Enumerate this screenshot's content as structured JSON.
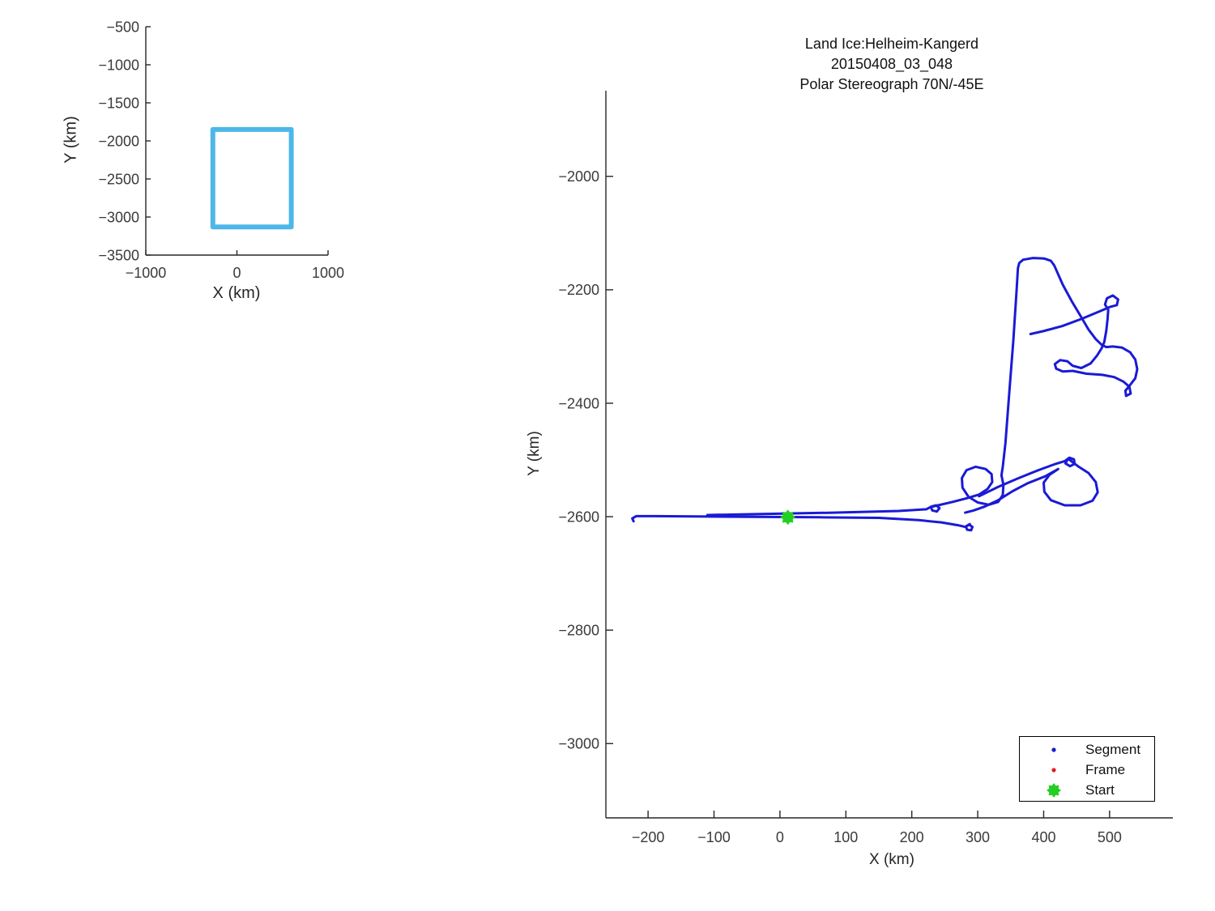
{
  "chart_data": [
    {
      "id": "overview-inset",
      "type": "line",
      "title": "",
      "xlabel": "X (km)",
      "ylabel": "Y (km)",
      "xlim": [
        -1000,
        1000
      ],
      "ylim": [
        -3500,
        -500
      ],
      "x_ticks": [
        -1000,
        0,
        1000
      ],
      "y_ticks": [
        -500,
        -1000,
        -1500,
        -2000,
        -2500,
        -3000,
        -3500
      ],
      "grid": false,
      "series": [
        {
          "name": "coverage-outline",
          "color": "#4db7e8",
          "linewidth": 6,
          "x": [
            -264,
            596,
            596,
            -264,
            -264
          ],
          "y": [
            -1850,
            -1850,
            -3130,
            -3130,
            -1850
          ]
        }
      ]
    },
    {
      "id": "flight-track",
      "type": "line",
      "title": [
        "Land Ice:Helheim-Kangerd",
        "20150408_03_048",
        "Polar Stereograph 70N/-45E"
      ],
      "xlabel": "X (km)",
      "ylabel": "Y (km)",
      "xlim": [
        -264,
        596
      ],
      "ylim": [
        -3131,
        -1849
      ],
      "x_ticks": [
        -200,
        -100,
        0,
        100,
        200,
        300,
        400,
        500
      ],
      "y_ticks": [
        -2000,
        -2200,
        -2400,
        -2600,
        -2800,
        -3000
      ],
      "grid": false,
      "legend_position": "lower right",
      "legend": [
        {
          "label": "Segment",
          "marker": "dot",
          "color": "#1a1ad6"
        },
        {
          "label": "Frame",
          "marker": "dot",
          "color": "#e02020"
        },
        {
          "label": "Start",
          "marker": "star8",
          "color": "#22cf22"
        }
      ],
      "track_color": "#1a1ad6",
      "start_point": {
        "x": 12,
        "y": -2601
      },
      "track_segments": [
        [
          [
            -222,
            -2608
          ],
          [
            -224,
            -2603
          ],
          [
            -218,
            -2599
          ],
          [
            -190,
            -2599
          ],
          [
            60,
            -2601
          ],
          [
            150,
            -2602
          ],
          [
            210,
            -2606
          ],
          [
            245,
            -2610
          ],
          [
            270,
            -2615
          ],
          [
            281,
            -2618
          ],
          [
            287,
            -2614
          ],
          [
            292,
            -2618
          ],
          [
            290,
            -2624
          ],
          [
            284,
            -2623
          ],
          [
            282,
            -2617
          ],
          [
            288,
            -2613
          ]
        ],
        [
          [
            -110,
            -2597
          ],
          [
            80,
            -2593
          ],
          [
            180,
            -2590
          ],
          [
            222,
            -2587
          ],
          [
            230,
            -2582
          ],
          [
            237,
            -2580
          ],
          [
            242,
            -2585
          ],
          [
            238,
            -2591
          ],
          [
            231,
            -2589
          ],
          [
            229,
            -2583
          ],
          [
            240,
            -2580
          ],
          [
            262,
            -2574
          ],
          [
            285,
            -2567
          ],
          [
            302,
            -2561
          ],
          [
            315,
            -2551
          ],
          [
            322,
            -2539
          ],
          [
            321,
            -2525
          ],
          [
            312,
            -2516
          ],
          [
            297,
            -2512
          ],
          [
            283,
            -2518
          ],
          [
            276,
            -2532
          ],
          [
            277,
            -2549
          ],
          [
            286,
            -2565
          ],
          [
            300,
            -2575
          ],
          [
            317,
            -2579
          ],
          [
            331,
            -2574
          ],
          [
            338,
            -2562
          ],
          [
            339,
            -2544
          ],
          [
            336,
            -2527
          ],
          [
            338,
            -2512
          ],
          [
            342,
            -2470
          ],
          [
            348,
            -2380
          ],
          [
            354,
            -2290
          ],
          [
            359,
            -2200
          ],
          [
            361,
            -2162
          ],
          [
            363,
            -2153
          ],
          [
            369,
            -2147
          ],
          [
            384,
            -2144
          ],
          [
            401,
            -2145
          ],
          [
            411,
            -2149
          ],
          [
            416,
            -2157
          ],
          [
            429,
            -2191
          ],
          [
            443,
            -2221
          ],
          [
            456,
            -2246
          ],
          [
            468,
            -2270
          ],
          [
            479,
            -2287
          ],
          [
            488,
            -2297
          ],
          [
            495,
            -2301
          ],
          [
            505,
            -2300
          ],
          [
            519,
            -2302
          ],
          [
            531,
            -2310
          ],
          [
            539,
            -2323
          ],
          [
            542,
            -2340
          ],
          [
            539,
            -2356
          ],
          [
            531,
            -2368
          ],
          [
            524,
            -2378
          ],
          [
            525,
            -2387
          ],
          [
            532,
            -2383
          ],
          [
            530,
            -2371
          ],
          [
            521,
            -2362
          ],
          [
            507,
            -2354
          ],
          [
            489,
            -2350
          ],
          [
            465,
            -2348
          ],
          [
            444,
            -2343
          ],
          [
            429,
            -2344
          ],
          [
            419,
            -2339
          ],
          [
            417,
            -2331
          ],
          [
            425,
            -2324
          ],
          [
            436,
            -2326
          ],
          [
            444,
            -2334
          ],
          [
            457,
            -2338
          ],
          [
            471,
            -2330
          ],
          [
            481,
            -2316
          ],
          [
            488,
            -2303
          ],
          [
            492,
            -2292
          ],
          [
            495,
            -2272
          ],
          [
            497,
            -2251
          ],
          [
            498,
            -2235
          ],
          [
            493,
            -2226
          ],
          [
            496,
            -2215
          ],
          [
            505,
            -2210
          ],
          [
            513,
            -2217
          ],
          [
            511,
            -2227
          ],
          [
            501,
            -2230
          ],
          [
            487,
            -2237
          ],
          [
            458,
            -2251
          ],
          [
            428,
            -2264
          ],
          [
            399,
            -2273
          ],
          [
            380,
            -2278
          ]
        ],
        [
          [
            302,
            -2564
          ],
          [
            330,
            -2548
          ],
          [
            360,
            -2533
          ],
          [
            392,
            -2518
          ],
          [
            418,
            -2507
          ],
          [
            432,
            -2502
          ],
          [
            439,
            -2496
          ],
          [
            446,
            -2499
          ],
          [
            447,
            -2507
          ],
          [
            440,
            -2511
          ],
          [
            433,
            -2506
          ],
          [
            437,
            -2498
          ],
          [
            452,
            -2511
          ],
          [
            468,
            -2523
          ],
          [
            479,
            -2539
          ],
          [
            482,
            -2557
          ],
          [
            474,
            -2572
          ],
          [
            456,
            -2580
          ],
          [
            432,
            -2580
          ],
          [
            411,
            -2571
          ],
          [
            401,
            -2556
          ],
          [
            400,
            -2540
          ],
          [
            409,
            -2526
          ],
          [
            422,
            -2516
          ],
          [
            402,
            -2529
          ],
          [
            376,
            -2541
          ],
          [
            353,
            -2555
          ],
          [
            331,
            -2571
          ],
          [
            311,
            -2582
          ],
          [
            294,
            -2589
          ],
          [
            281,
            -2593
          ]
        ]
      ]
    }
  ],
  "style": {
    "axis_color": "#262626",
    "tick_label_color": "#3a3a3a",
    "background": "#ffffff"
  }
}
